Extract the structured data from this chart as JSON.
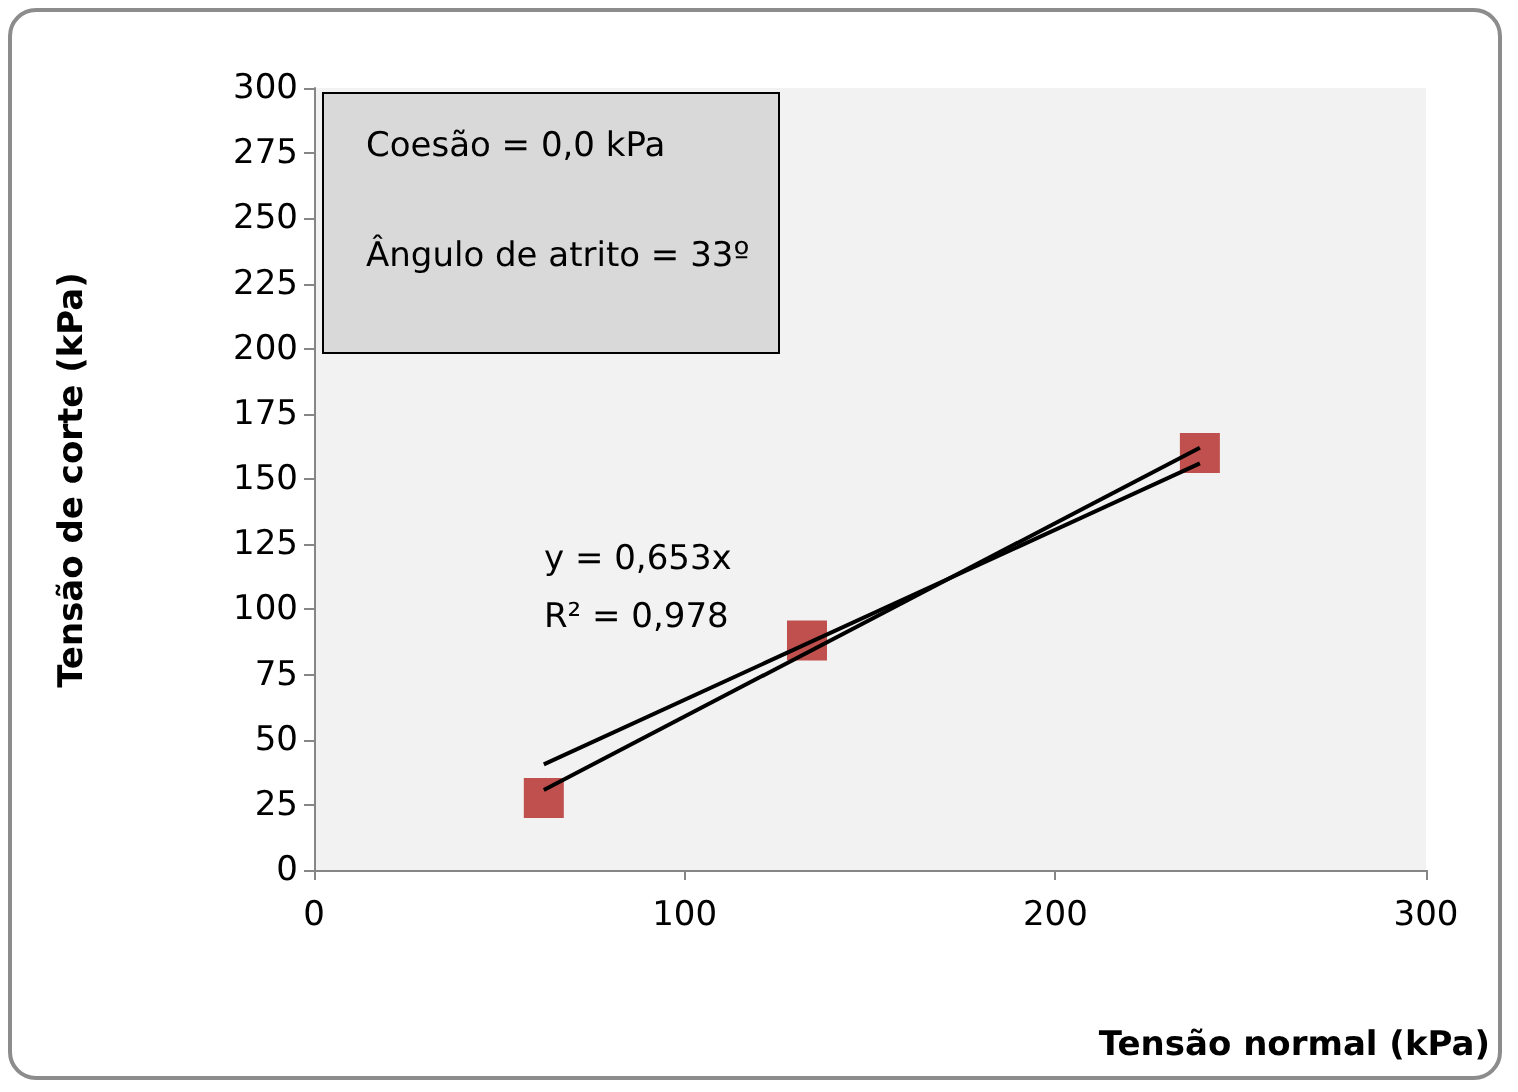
{
  "chart_data": {
    "type": "scatter",
    "xlabel": "Tensão normal (kPa)",
    "ylabel": "Tensão de corte (kPa)",
    "annotations": [
      "Coesão  = 0,0 kPa",
      "Ângulo de atrito = 33º",
      "y = 0,653x",
      "R² = 0,978"
    ],
    "series": [
      {
        "color": "#c0504d",
        "x": [
          62,
          133,
          239
        ],
        "values": [
          27.6,
          88,
          160
        ],
        "marker": "square"
      },
      {
        "type": "line",
        "color": "#000000",
        "x": [
          62,
          239
        ],
        "values": [
          40.5,
          156
        ],
        "marker": "none"
      },
      {
        "type": "line",
        "color": "#000000",
        "x": [
          62,
          239
        ],
        "values": [
          30.7,
          162
        ],
        "marker": "none"
      }
    ],
    "xlim": [
      0,
      300
    ],
    "xticks": [
      0,
      100,
      200,
      300
    ],
    "ylim": [
      0,
      300
    ],
    "yticks": [
      0,
      25,
      50,
      75,
      100,
      125,
      150,
      175,
      200,
      225,
      250,
      275,
      300
    ],
    "grid": false
  }
}
